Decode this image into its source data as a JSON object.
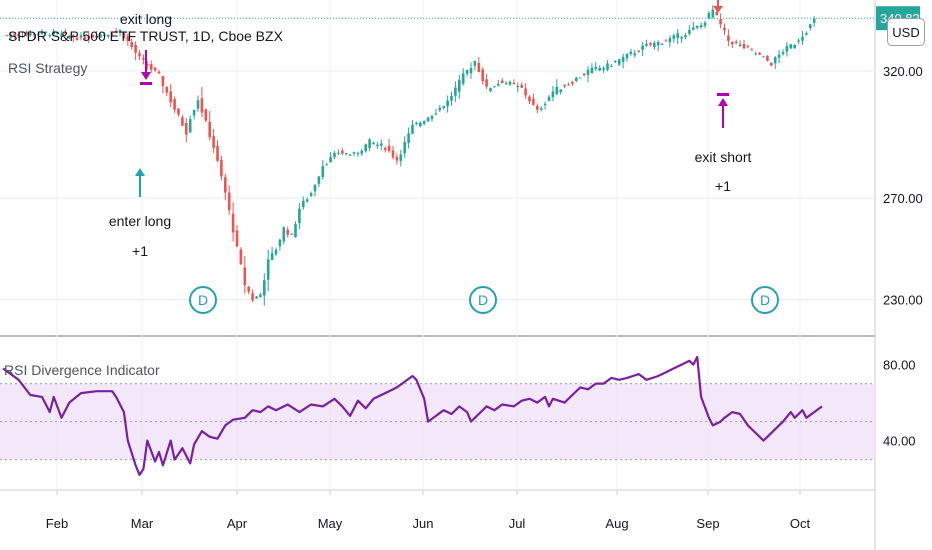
{
  "chart_data": {
    "type": "candlestick",
    "title": "SPDR S&P 500 ETF TRUST, 1D, Cboe BZX",
    "currency_button": "USD",
    "colors": {
      "up": "#26a69a",
      "down": "#ef5350",
      "rsi": "#7b1fa2",
      "band": "#ede0f7",
      "last_price": "#26a69a",
      "divergence": "#26a2b5",
      "signal": "#b300b3"
    },
    "price_pane": {
      "indicator_label": "RSI Strategy",
      "y_ticks": [
        "320.00",
        "270.00",
        "230.00"
      ],
      "partial_ticks": [
        "3",
        "340.83"
      ],
      "last_price": 340.83,
      "ylim": [
        216,
        348
      ]
    },
    "rsi_pane": {
      "label": "RSI Divergence Indicator",
      "y_ticks": [
        "80.00",
        "40.00"
      ],
      "band": [
        30,
        70
      ],
      "midline": 50,
      "ylim": [
        14,
        94
      ]
    },
    "x_months": [
      "Feb",
      "Mar",
      "Apr",
      "May",
      "Jun",
      "Jul",
      "Aug",
      "Sep",
      "Oct"
    ],
    "price_path": [
      [
        0,
        334
      ],
      [
        12,
        335
      ],
      [
        20,
        333
      ],
      [
        27,
        335
      ],
      [
        30,
        336
      ],
      [
        35,
        325
      ],
      [
        40,
        318
      ],
      [
        44,
        305
      ],
      [
        47,
        296
      ],
      [
        48,
        302
      ],
      [
        50,
        309
      ],
      [
        54,
        290
      ],
      [
        57,
        272
      ],
      [
        60,
        250
      ],
      [
        62,
        236
      ],
      [
        64,
        230
      ],
      [
        66,
        232
      ],
      [
        68,
        245
      ],
      [
        70,
        250
      ],
      [
        72,
        258
      ],
      [
        74,
        255
      ],
      [
        76,
        266
      ],
      [
        79,
        272
      ],
      [
        82,
        283
      ],
      [
        86,
        288
      ],
      [
        90,
        287
      ],
      [
        94,
        292
      ],
      [
        98,
        290
      ],
      [
        101,
        285
      ],
      [
        105,
        298
      ],
      [
        110,
        303
      ],
      [
        114,
        308
      ],
      [
        118,
        318
      ],
      [
        121,
        324
      ],
      [
        124,
        313
      ],
      [
        128,
        316
      ],
      [
        133,
        313
      ],
      [
        137,
        304
      ],
      [
        141,
        312
      ],
      [
        146,
        316
      ],
      [
        150,
        320
      ],
      [
        155,
        322
      ],
      [
        160,
        326
      ],
      [
        165,
        330
      ],
      [
        170,
        332
      ],
      [
        175,
        335
      ],
      [
        179,
        338
      ],
      [
        182,
        344
      ],
      [
        184,
        338
      ],
      [
        186,
        332
      ],
      [
        189,
        330
      ],
      [
        193,
        327
      ],
      [
        197,
        323
      ],
      [
        200,
        328
      ],
      [
        203,
        331
      ],
      [
        206,
        336
      ],
      [
        208,
        340
      ]
    ],
    "rsi_path": [
      [
        0,
        78
      ],
      [
        4,
        72
      ],
      [
        7,
        64
      ],
      [
        10,
        63
      ],
      [
        12,
        55
      ],
      [
        13,
        63
      ],
      [
        15,
        52
      ],
      [
        17,
        60
      ],
      [
        20,
        65
      ],
      [
        24,
        66
      ],
      [
        28,
        66
      ],
      [
        29,
        63
      ],
      [
        31,
        55
      ],
      [
        32,
        40
      ],
      [
        34,
        27
      ],
      [
        35,
        22
      ],
      [
        36,
        25
      ],
      [
        37,
        40
      ],
      [
        39,
        29
      ],
      [
        40,
        34
      ],
      [
        41,
        27
      ],
      [
        43,
        40
      ],
      [
        44,
        30
      ],
      [
        46,
        36
      ],
      [
        48,
        28
      ],
      [
        49,
        38
      ],
      [
        51,
        45
      ],
      [
        53,
        42
      ],
      [
        55,
        41
      ],
      [
        57,
        48
      ],
      [
        59,
        51
      ],
      [
        62,
        52
      ],
      [
        64,
        56
      ],
      [
        66,
        55
      ],
      [
        68,
        58
      ],
      [
        70,
        56
      ],
      [
        73,
        59
      ],
      [
        76,
        55
      ],
      [
        79,
        59
      ],
      [
        82,
        58
      ],
      [
        85,
        62
      ],
      [
        87,
        58
      ],
      [
        89,
        53
      ],
      [
        91,
        61
      ],
      [
        93,
        57
      ],
      [
        95,
        62
      ],
      [
        97,
        64
      ],
      [
        99,
        66
      ],
      [
        101,
        68
      ],
      [
        103,
        71
      ],
      [
        105,
        74
      ],
      [
        106,
        72
      ],
      [
        108,
        62
      ],
      [
        109,
        50
      ],
      [
        111,
        53
      ],
      [
        113,
        56
      ],
      [
        115,
        54
      ],
      [
        117,
        58
      ],
      [
        119,
        55
      ],
      [
        120,
        50
      ],
      [
        122,
        54
      ],
      [
        124,
        58
      ],
      [
        126,
        56
      ],
      [
        128,
        59
      ],
      [
        131,
        58
      ],
      [
        133,
        61
      ],
      [
        135,
        62
      ],
      [
        137,
        60
      ],
      [
        139,
        63
      ],
      [
        140,
        58
      ],
      [
        141,
        62
      ],
      [
        144,
        60
      ],
      [
        146,
        64
      ],
      [
        148,
        68
      ],
      [
        150,
        67
      ],
      [
        152,
        70
      ],
      [
        154,
        70
      ],
      [
        156,
        73
      ],
      [
        158,
        72
      ],
      [
        160,
        73
      ],
      [
        163,
        75
      ],
      [
        165,
        72
      ],
      [
        168,
        74
      ],
      [
        170,
        76
      ],
      [
        172,
        78
      ],
      [
        174,
        80
      ],
      [
        176,
        82
      ],
      [
        177,
        80
      ],
      [
        178,
        84
      ],
      [
        179,
        63
      ],
      [
        181,
        52
      ],
      [
        182,
        48
      ],
      [
        184,
        50
      ],
      [
        185,
        52
      ],
      [
        187,
        55
      ],
      [
        189,
        54
      ],
      [
        191,
        48
      ],
      [
        193,
        44
      ],
      [
        195,
        40
      ],
      [
        196,
        42
      ],
      [
        198,
        46
      ],
      [
        200,
        50
      ],
      [
        202,
        55
      ],
      [
        203,
        52
      ],
      [
        205,
        56
      ],
      [
        206,
        52
      ],
      [
        208,
        55
      ],
      [
        210,
        58
      ]
    ],
    "trades": [
      {
        "text": "exit long",
        "bar": 36
      },
      {
        "text": "enter long",
        "text2": "+1",
        "bar": 34
      },
      {
        "text": "exit short",
        "text2": "+1",
        "bar": 181
      }
    ],
    "dividends": [
      "D",
      "D",
      "D"
    ]
  }
}
